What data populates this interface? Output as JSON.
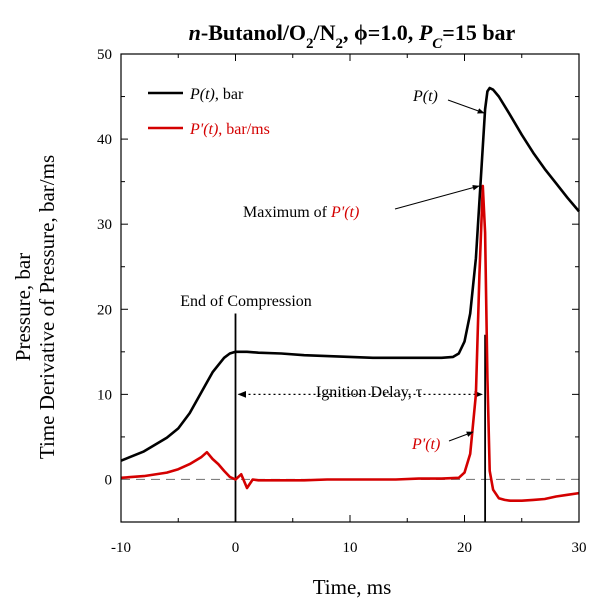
{
  "chart_data": {
    "type": "line",
    "title": {
      "n_italic": "n",
      "part1": "-Butanol/O",
      "sub1": "2",
      "part2": "/N",
      "sub2": "2",
      "part3": ", ϕ=1.0, ",
      "p_italic": "P",
      "sub3": "C",
      "part4": "=15 bar"
    },
    "xlabel": "Time, ms",
    "ylabel_line1": "Pressure, bar",
    "ylabel_line2": "Time Derivative of Pressure, bar/ms",
    "xlim": [
      -10,
      30
    ],
    "ylim": [
      -5,
      50
    ],
    "xticks": [
      -10,
      0,
      10,
      20,
      30
    ],
    "xtick_labels": [
      "-10",
      "0",
      "10",
      "20",
      "30"
    ],
    "yticks": [
      0,
      10,
      20,
      30,
      40,
      50
    ],
    "ytick_labels": [
      "0",
      "10",
      "20",
      "30",
      "40",
      "50"
    ],
    "colors": {
      "pressure": "#000000",
      "derivative": "#d40000",
      "zero_line": "#808080"
    },
    "legend": {
      "placement": "top-left",
      "entries": [
        {
          "italic": "P(t)",
          "rest": ", bar",
          "color": "#000000"
        },
        {
          "italic": "P'(t)",
          "rest": ", bar/ms",
          "color": "#d40000"
        }
      ]
    },
    "series": [
      {
        "name": "P(t), bar",
        "color": "#000000",
        "x": [
          -10,
          -8,
          -6,
          -5,
          -4,
          -3,
          -2,
          -1,
          -0.5,
          0,
          0.5,
          1,
          2,
          4,
          6,
          8,
          10,
          12,
          14,
          16,
          18,
          19,
          19.5,
          20,
          20.5,
          21,
          21.5,
          21.8,
          22,
          22.2,
          22.5,
          23,
          24,
          25,
          26,
          27,
          28,
          29,
          30
        ],
        "y": [
          2.2,
          3.3,
          4.9,
          6.0,
          7.8,
          10.2,
          12.6,
          14.3,
          14.8,
          15.0,
          15.0,
          15.0,
          14.9,
          14.8,
          14.6,
          14.5,
          14.4,
          14.3,
          14.3,
          14.3,
          14.3,
          14.4,
          14.8,
          16.2,
          19.5,
          26.0,
          37.0,
          43.5,
          45.6,
          46.0,
          45.8,
          45.0,
          42.8,
          40.5,
          38.4,
          36.5,
          34.8,
          33.1,
          31.5
        ]
      },
      {
        "name": "P'(t), bar/ms",
        "color": "#d40000",
        "x": [
          -10,
          -8,
          -6,
          -5,
          -4,
          -3,
          -2.5,
          -2,
          -1.5,
          -1,
          -0.5,
          0,
          0.5,
          1,
          1.5,
          2,
          4,
          6,
          8,
          10,
          12,
          14,
          16,
          18,
          19.5,
          20,
          20.5,
          21,
          21.3,
          21.6,
          21.8,
          22,
          22.2,
          22.5,
          23,
          23.5,
          24,
          25,
          26,
          27,
          28,
          29,
          30
        ],
        "y": [
          0.2,
          0.4,
          0.8,
          1.2,
          1.8,
          2.6,
          3.2,
          2.4,
          1.8,
          1.0,
          0.3,
          0.0,
          0.6,
          -1.0,
          0.0,
          -0.1,
          -0.1,
          -0.1,
          0.0,
          0.0,
          0.0,
          0.0,
          0.1,
          0.1,
          0.2,
          0.8,
          3.0,
          10.0,
          24.0,
          34.5,
          29.0,
          12.0,
          1.0,
          -1.2,
          -2.2,
          -2.4,
          -2.5,
          -2.5,
          -2.4,
          -2.3,
          -2.0,
          -1.8,
          -1.6
        ]
      }
    ],
    "reference_lines": [
      {
        "kind": "horizontal-dashed",
        "y": 0
      },
      {
        "kind": "vertical",
        "x": 0,
        "y_from": -5,
        "y_to": 19.5
      },
      {
        "kind": "vertical",
        "x": 21.8,
        "y_from": -5,
        "y_to": 17
      }
    ],
    "annotations": {
      "end_of_compression": "End of Compression",
      "ignition_delay": "Ignition Delay, τ",
      "ignition_delay_range": [
        0,
        21.8
      ],
      "ignition_delay_y": 10,
      "maximum_prefix": "Maximum of ",
      "maximum_italic": "P'(t)",
      "p_label": "P(t)",
      "pprime_label": "P'(t)"
    }
  }
}
